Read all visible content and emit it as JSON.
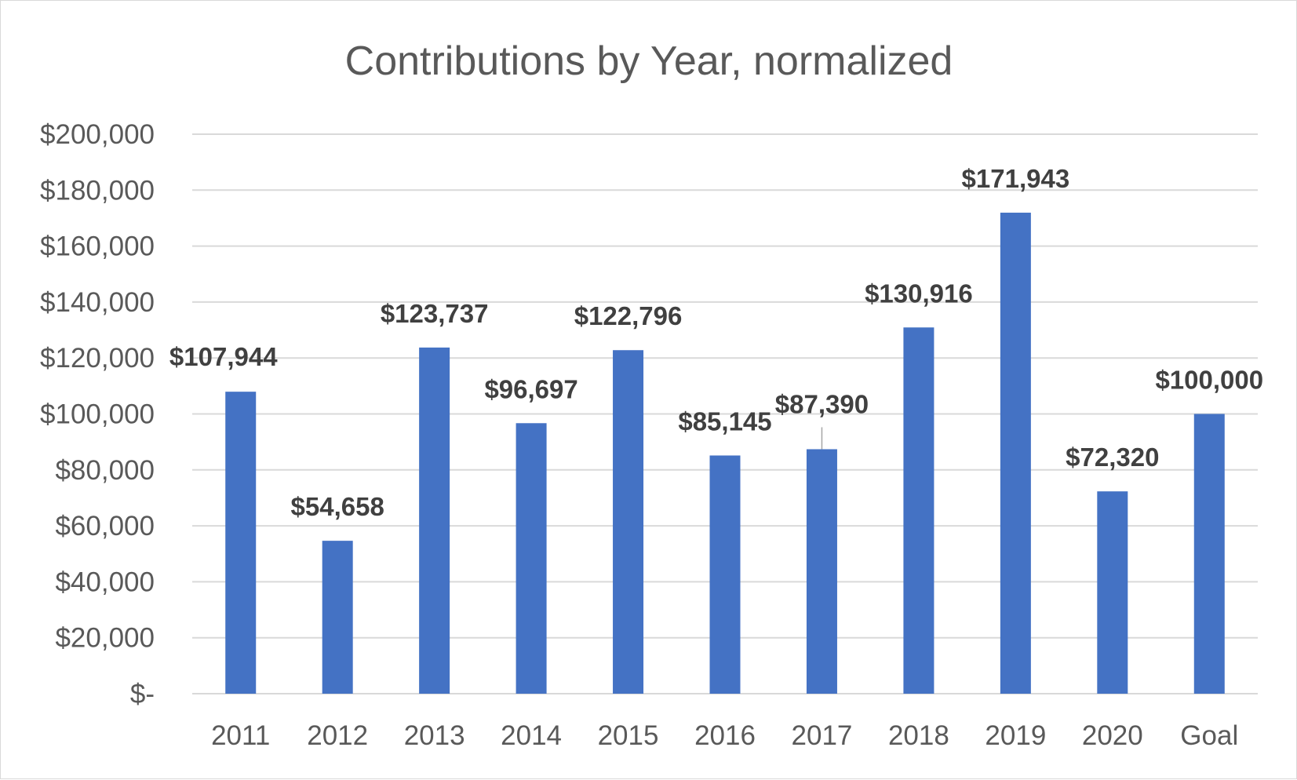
{
  "chart_data": {
    "type": "bar",
    "title": "Contributions by Year, normalized",
    "xlabel": "",
    "ylabel": "",
    "categories": [
      "2011",
      "2012",
      "2013",
      "2014",
      "2015",
      "2016",
      "2017",
      "2018",
      "2019",
      "2020",
      "Goal"
    ],
    "values": [
      107944,
      54658,
      123737,
      96697,
      122796,
      85145,
      87390,
      130916,
      171943,
      72320,
      100000
    ],
    "data_labels": [
      "$107,944",
      "$54,658",
      "$123,737",
      "$96,697",
      "$122,796",
      "$85,145",
      "$87,390",
      "$130,916",
      "$171,943",
      "$72,320",
      "$100,000"
    ],
    "ylim": [
      0,
      200000
    ],
    "yticks": [
      0,
      20000,
      40000,
      60000,
      80000,
      100000,
      120000,
      140000,
      160000,
      180000,
      200000
    ],
    "ytick_labels": [
      "$-",
      "$20,000",
      "$40,000",
      "$60,000",
      "$80,000",
      "$100,000",
      "$120,000",
      "$140,000",
      "$160,000",
      "$180,000",
      "$200,000"
    ],
    "grid": true,
    "legend": "none",
    "bar_color": "#4472c4"
  }
}
